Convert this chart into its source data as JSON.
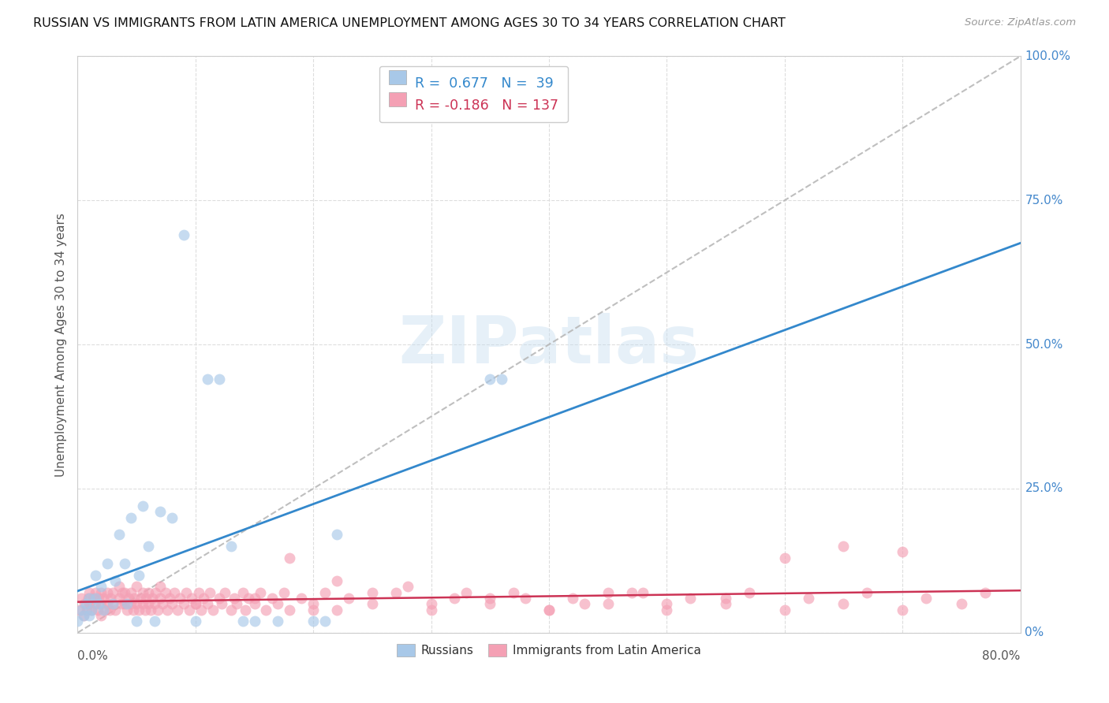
{
  "title": "RUSSIAN VS IMMIGRANTS FROM LATIN AMERICA UNEMPLOYMENT AMONG AGES 30 TO 34 YEARS CORRELATION CHART",
  "source": "Source: ZipAtlas.com",
  "ylabel": "Unemployment Among Ages 30 to 34 years",
  "russian_R": 0.677,
  "russian_N": 39,
  "latin_R": -0.186,
  "latin_N": 137,
  "russian_color": "#a8c8e8",
  "russian_line_color": "#3388cc",
  "latin_color": "#f4a0b4",
  "latin_line_color": "#cc3355",
  "diagonal_color": "#b8b8b8",
  "watermark": "ZIPatlas",
  "xlim": [
    0.0,
    0.8
  ],
  "ylim": [
    0.0,
    1.0
  ],
  "right_ytick_vals": [
    0.0,
    0.25,
    0.5,
    0.75,
    1.0
  ],
  "right_ytick_labels": [
    "0%",
    "25.0%",
    "50.0%",
    "75.0%",
    "100.0%"
  ],
  "x_vticks": [
    0.1,
    0.2,
    0.3,
    0.4,
    0.5,
    0.6,
    0.7
  ],
  "background_color": "#ffffff",
  "grid_color": "#dddddd",
  "russian_scatter_x": [
    0.0,
    0.003,
    0.005,
    0.007,
    0.01,
    0.01,
    0.012,
    0.015,
    0.015,
    0.018,
    0.02,
    0.022,
    0.025,
    0.03,
    0.032,
    0.035,
    0.04,
    0.042,
    0.045,
    0.05,
    0.052,
    0.055,
    0.06,
    0.065,
    0.07,
    0.08,
    0.09,
    0.1,
    0.11,
    0.12,
    0.13,
    0.14,
    0.15,
    0.17,
    0.2,
    0.21,
    0.22,
    0.35,
    0.36
  ],
  "russian_scatter_y": [
    0.02,
    0.04,
    0.03,
    0.05,
    0.03,
    0.06,
    0.04,
    0.06,
    0.1,
    0.05,
    0.08,
    0.04,
    0.12,
    0.05,
    0.09,
    0.17,
    0.12,
    0.05,
    0.2,
    0.02,
    0.1,
    0.22,
    0.15,
    0.02,
    0.21,
    0.2,
    0.69,
    0.02,
    0.44,
    0.44,
    0.15,
    0.02,
    0.02,
    0.02,
    0.02,
    0.02,
    0.17,
    0.44,
    0.44
  ],
  "latin_scatter_x": [
    0.002,
    0.003,
    0.005,
    0.006,
    0.008,
    0.009,
    0.01,
    0.01,
    0.012,
    0.013,
    0.015,
    0.015,
    0.017,
    0.018,
    0.02,
    0.02,
    0.02,
    0.022,
    0.023,
    0.025,
    0.025,
    0.027,
    0.028,
    0.03,
    0.03,
    0.032,
    0.035,
    0.035,
    0.037,
    0.038,
    0.04,
    0.04,
    0.042,
    0.043,
    0.045,
    0.045,
    0.047,
    0.048,
    0.05,
    0.05,
    0.052,
    0.053,
    0.055,
    0.055,
    0.057,
    0.058,
    0.06,
    0.06,
    0.062,
    0.063,
    0.065,
    0.066,
    0.068,
    0.07,
    0.07,
    0.072,
    0.075,
    0.076,
    0.078,
    0.08,
    0.082,
    0.085,
    0.087,
    0.09,
    0.092,
    0.095,
    0.097,
    0.1,
    0.103,
    0.105,
    0.107,
    0.11,
    0.112,
    0.115,
    0.12,
    0.122,
    0.125,
    0.13,
    0.133,
    0.135,
    0.14,
    0.142,
    0.145,
    0.15,
    0.155,
    0.16,
    0.165,
    0.17,
    0.175,
    0.18,
    0.19,
    0.2,
    0.21,
    0.22,
    0.23,
    0.25,
    0.27,
    0.3,
    0.32,
    0.35,
    0.37,
    0.4,
    0.42,
    0.45,
    0.47,
    0.5,
    0.52,
    0.55,
    0.57,
    0.6,
    0.62,
    0.65,
    0.67,
    0.7,
    0.72,
    0.75,
    0.77,
    0.6,
    0.65,
    0.7,
    0.55,
    0.5,
    0.45,
    0.4,
    0.35,
    0.3,
    0.25,
    0.2,
    0.15,
    0.1,
    0.18,
    0.22,
    0.28,
    0.33,
    0.38,
    0.43,
    0.48
  ],
  "latin_scatter_y": [
    0.04,
    0.06,
    0.03,
    0.05,
    0.04,
    0.06,
    0.05,
    0.07,
    0.04,
    0.06,
    0.05,
    0.07,
    0.04,
    0.06,
    0.05,
    0.07,
    0.03,
    0.06,
    0.04,
    0.05,
    0.07,
    0.04,
    0.06,
    0.05,
    0.07,
    0.04,
    0.06,
    0.08,
    0.05,
    0.07,
    0.05,
    0.07,
    0.04,
    0.06,
    0.05,
    0.07,
    0.04,
    0.06,
    0.05,
    0.08,
    0.04,
    0.06,
    0.05,
    0.07,
    0.04,
    0.06,
    0.05,
    0.07,
    0.04,
    0.06,
    0.05,
    0.07,
    0.04,
    0.06,
    0.08,
    0.05,
    0.07,
    0.04,
    0.06,
    0.05,
    0.07,
    0.04,
    0.06,
    0.05,
    0.07,
    0.04,
    0.06,
    0.05,
    0.07,
    0.04,
    0.06,
    0.05,
    0.07,
    0.04,
    0.06,
    0.05,
    0.07,
    0.04,
    0.06,
    0.05,
    0.07,
    0.04,
    0.06,
    0.05,
    0.07,
    0.04,
    0.06,
    0.05,
    0.07,
    0.04,
    0.06,
    0.05,
    0.07,
    0.04,
    0.06,
    0.05,
    0.07,
    0.04,
    0.06,
    0.05,
    0.07,
    0.04,
    0.06,
    0.05,
    0.07,
    0.04,
    0.06,
    0.05,
    0.07,
    0.04,
    0.06,
    0.05,
    0.07,
    0.04,
    0.06,
    0.05,
    0.07,
    0.13,
    0.15,
    0.14,
    0.06,
    0.05,
    0.07,
    0.04,
    0.06,
    0.05,
    0.07,
    0.04,
    0.06,
    0.05,
    0.13,
    0.09,
    0.08,
    0.07,
    0.06,
    0.05,
    0.07
  ]
}
